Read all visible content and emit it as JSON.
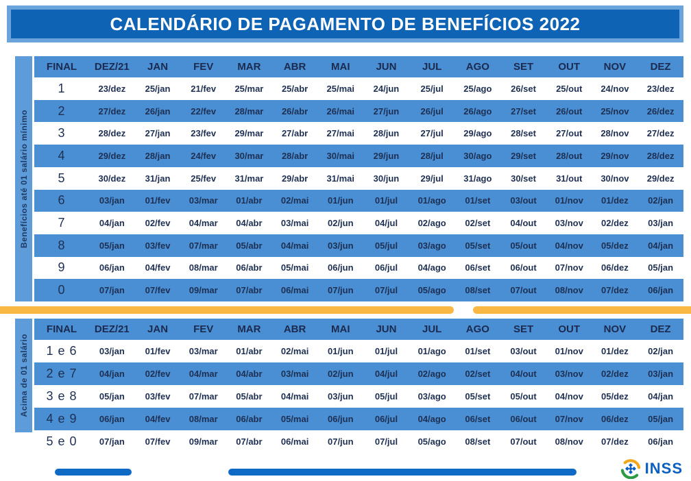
{
  "title": "CALENDÁRIO DE PAGAMENTO DE BENEFÍCIOS 2022",
  "columns": [
    "FINAL",
    "DEZ/21",
    "JAN",
    "FEV",
    "MAR",
    "ABR",
    "MAI",
    "JUN",
    "JUL",
    "AGO",
    "SET",
    "OUT",
    "NOV",
    "DEZ"
  ],
  "tables": [
    {
      "side_label": "Benefícios até 01 salário mínimo",
      "rows": [
        {
          "final": "1",
          "dates": [
            "23/dez",
            "25/jan",
            "21/fev",
            "25/mar",
            "25/abr",
            "25/mai",
            "24/jun",
            "25/jul",
            "25/ago",
            "26/set",
            "25/out",
            "24/nov",
            "23/dez"
          ]
        },
        {
          "final": "2",
          "dates": [
            "27/dez",
            "26/jan",
            "22/fev",
            "28/mar",
            "26/abr",
            "26/mai",
            "27/jun",
            "26/jul",
            "26/ago",
            "27/set",
            "26/out",
            "25/nov",
            "26/dez"
          ]
        },
        {
          "final": "3",
          "dates": [
            "28/dez",
            "27/jan",
            "23/fev",
            "29/mar",
            "27/abr",
            "27/mai",
            "28/jun",
            "27/jul",
            "29/ago",
            "28/set",
            "27/out",
            "28/nov",
            "27/dez"
          ]
        },
        {
          "final": "4",
          "dates": [
            "29/dez",
            "28/jan",
            "24/fev",
            "30/mar",
            "28/abr",
            "30/mai",
            "29/jun",
            "28/jul",
            "30/ago",
            "29/set",
            "28/out",
            "29/nov",
            "28/dez"
          ]
        },
        {
          "final": "5",
          "dates": [
            "30/dez",
            "31/jan",
            "25/fev",
            "31/mar",
            "29/abr",
            "31/mai",
            "30/jun",
            "29/jul",
            "31/ago",
            "30/set",
            "31/out",
            "30/nov",
            "29/dez"
          ]
        },
        {
          "final": "6",
          "dates": [
            "03/jan",
            "01/fev",
            "03/mar",
            "01/abr",
            "02/mai",
            "01/jun",
            "01/jul",
            "01/ago",
            "01/set",
            "03/out",
            "01/nov",
            "01/dez",
            "02/jan"
          ]
        },
        {
          "final": "7",
          "dates": [
            "04/jan",
            "02/fev",
            "04/mar",
            "04/abr",
            "03/mai",
            "02/jun",
            "04/jul",
            "02/ago",
            "02/set",
            "04/out",
            "03/nov",
            "02/dez",
            "03/jan"
          ]
        },
        {
          "final": "8",
          "dates": [
            "05/jan",
            "03/fev",
            "07/mar",
            "05/abr",
            "04/mai",
            "03/jun",
            "05/jul",
            "03/ago",
            "05/set",
            "05/out",
            "04/nov",
            "05/dez",
            "04/jan"
          ]
        },
        {
          "final": "9",
          "dates": [
            "06/jan",
            "04/fev",
            "08/mar",
            "06/abr",
            "05/mai",
            "06/jun",
            "06/jul",
            "04/ago",
            "06/set",
            "06/out",
            "07/nov",
            "06/dez",
            "05/jan"
          ]
        },
        {
          "final": "0",
          "dates": [
            "07/jan",
            "07/fev",
            "09/mar",
            "07/abr",
            "06/mai",
            "07/jun",
            "07/jul",
            "05/ago",
            "08/set",
            "07/out",
            "08/nov",
            "07/dez",
            "06/jan"
          ]
        }
      ]
    },
    {
      "side_label": "Acima de 01 salário",
      "rows": [
        {
          "final": "1 e 6",
          "dates": [
            "03/jan",
            "01/fev",
            "03/mar",
            "01/abr",
            "02/mai",
            "01/jun",
            "01/jul",
            "01/ago",
            "01/set",
            "03/out",
            "01/nov",
            "01/dez",
            "02/jan"
          ]
        },
        {
          "final": "2 e 7",
          "dates": [
            "04/jan",
            "02/fev",
            "04/mar",
            "04/abr",
            "03/mai",
            "02/jun",
            "04/jul",
            "02/ago",
            "02/set",
            "04/out",
            "03/nov",
            "02/dez",
            "03/jan"
          ]
        },
        {
          "final": "3 e 8",
          "dates": [
            "05/jan",
            "03/fev",
            "07/mar",
            "05/abr",
            "04/mai",
            "03/jun",
            "05/jul",
            "03/ago",
            "05/set",
            "05/out",
            "04/nov",
            "05/dez",
            "04/jan"
          ]
        },
        {
          "final": "4 e 9",
          "dates": [
            "06/jan",
            "04/fev",
            "08/mar",
            "06/abr",
            "05/mai",
            "06/jun",
            "06/jul",
            "04/ago",
            "06/set",
            "06/out",
            "07/nov",
            "06/dez",
            "05/jan"
          ]
        },
        {
          "final": "5 e 0",
          "dates": [
            "07/jan",
            "07/fev",
            "09/mar",
            "07/abr",
            "06/mai",
            "07/jun",
            "07/jul",
            "05/ago",
            "08/set",
            "07/out",
            "08/nov",
            "07/dez",
            "06/jan"
          ]
        }
      ]
    }
  ],
  "footer": {
    "logo_text": "INSS"
  },
  "colors": {
    "banner_outer": "#6aa4da",
    "banner_inner": "#0f63b5",
    "row_blue": "#4a8fd3",
    "strip_blue": "#5e9cd9",
    "text_navy": "#1e2f52",
    "divider_yellow": "#f9b843",
    "bar_blue": "#0e6ac4",
    "logo_blue": "#0b5fc0",
    "logo_green": "#2e9b43",
    "logo_orange": "#f2a71b"
  }
}
